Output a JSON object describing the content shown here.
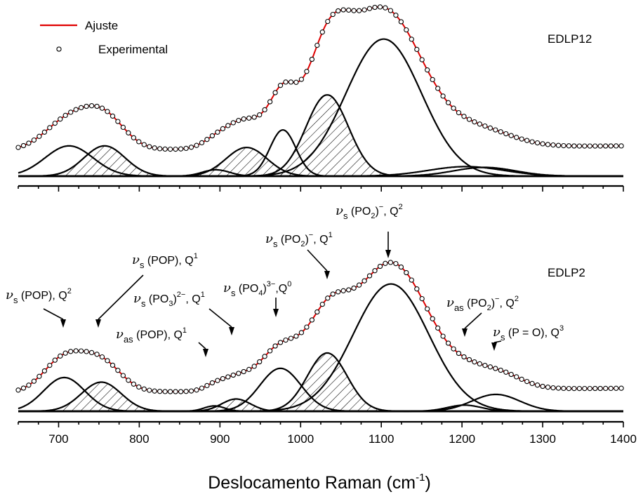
{
  "chart_data": {
    "type": "line",
    "xlabel_main": "Deslocamento Raman (cm",
    "xlabel_sup": "-1",
    "xlim": [
      650,
      1400
    ],
    "x_ticks": [
      700,
      800,
      900,
      1000,
      1100,
      1200,
      1300,
      1400
    ],
    "legend": {
      "position": "top-left",
      "fit_label": "Ajuste",
      "exp_label": "Experimental"
    },
    "colors": {
      "fit": "#e00000",
      "component": "#000000",
      "points": "#000000"
    },
    "panels": [
      {
        "name": "EDLP12",
        "label": "EDLP12",
        "ylim": [
          0,
          1.07
        ],
        "baseline_slope": 4e-05,
        "baseline_offset": 0.16,
        "peaks": [
          {
            "center": 713,
            "height": 0.19,
            "fwhm": 70,
            "hatched": false
          },
          {
            "center": 757,
            "height": 0.19,
            "fwhm": 60,
            "hatched": true
          },
          {
            "center": 895,
            "height": 0.04,
            "fwhm": 40,
            "hatched": false
          },
          {
            "center": 933,
            "height": 0.18,
            "fwhm": 60,
            "hatched": true
          },
          {
            "center": 978,
            "height": 0.29,
            "fwhm": 38,
            "hatched": false
          },
          {
            "center": 1033,
            "height": 0.51,
            "fwhm": 62,
            "hatched": true
          },
          {
            "center": 1103,
            "height": 0.86,
            "fwhm": 110,
            "hatched": false
          },
          {
            "center": 1205,
            "height": 0.06,
            "fwhm": 110,
            "hatched": false
          },
          {
            "center": 1228,
            "height": 0.055,
            "fwhm": 90,
            "hatched": false
          }
        ]
      },
      {
        "name": "EDLP2",
        "label": "EDLP2",
        "ylim": [
          0,
          1.08
        ],
        "baseline_slope": 4e-05,
        "baseline_offset": 0.12,
        "peaks": [
          {
            "center": 707,
            "height": 0.22,
            "fwhm": 60,
            "hatched": false
          },
          {
            "center": 753,
            "height": 0.19,
            "fwhm": 58,
            "hatched": true
          },
          {
            "center": 893,
            "height": 0.035,
            "fwhm": 30,
            "hatched": false
          },
          {
            "center": 920,
            "height": 0.08,
            "fwhm": 42,
            "hatched": true
          },
          {
            "center": 975,
            "height": 0.28,
            "fwhm": 60,
            "hatched": false
          },
          {
            "center": 1033,
            "height": 0.38,
            "fwhm": 58,
            "hatched": true
          },
          {
            "center": 1112,
            "height": 0.83,
            "fwhm": 110,
            "hatched": false
          },
          {
            "center": 1203,
            "height": 0.04,
            "fwhm": 50,
            "hatched": false
          },
          {
            "center": 1242,
            "height": 0.11,
            "fwhm": 70,
            "hatched": false
          }
        ],
        "annotations": [
          {
            "name": "vs-pop-q2",
            "sym": "ν",
            "sub": "s",
            "rest": " (POP), Q",
            "sup": "2",
            "x": 707,
            "y": 0.46
          },
          {
            "name": "vs-pop-q1",
            "sym": "ν",
            "sub": "s",
            "rest": " (POP), Q",
            "sup": "1",
            "x": 755,
            "y": 0.46
          },
          {
            "name": "vas-pop-q1",
            "sym": "ν",
            "sub": "as",
            "rest": " (POP), Q",
            "sup": "1",
            "x": 882,
            "y": 0.32
          },
          {
            "name": "vs-po3-q1",
            "sym": "ν",
            "sub": "s",
            "rest": " (PO",
            "sub2": "3",
            "rest2": ")",
            "sup2": "2−",
            "rest3": ", Q",
            "sup": "1",
            "x": 912,
            "y": 0.37
          },
          {
            "name": "vs-po4-q0",
            "sym": "ν",
            "sub": "s",
            "rest": " (PO",
            "sub2": "4",
            "rest2": ")",
            "sup2": "3−",
            "rest3": ",Q",
            "sup": "0",
            "x": 975,
            "y": 0.53
          },
          {
            "name": "vs-po2-q1",
            "sym": "ν",
            "sub": "s",
            "rest": " (PO",
            "sub2": "2",
            "rest2": ")",
            "sup2": "−",
            "rest3": ", Q",
            "sup": "1",
            "x": 1033,
            "y": 0.72
          },
          {
            "name": "vs-po2-q2",
            "sym": "ν",
            "sub": "s",
            "rest": " (PO",
            "sub2": "2",
            "rest2": ")",
            "sup2": "−",
            "rest3": ", Q",
            "sup": "2",
            "x": 1110,
            "y": 0.98
          },
          {
            "name": "vas-po2-q2",
            "sym": "ν",
            "sub": "as",
            "rest": " (PO",
            "sub2": "2",
            "rest2": ")",
            "sup2": "−",
            "rest3": ", Q",
            "sup": "2",
            "x": 1203,
            "y": 0.43
          },
          {
            "name": "vs-po-q3",
            "sym": "ν",
            "sub": "s",
            "rest": " (P = O), Q",
            "sup": "3",
            "x": 1240,
            "y": 0.33
          }
        ]
      }
    ]
  }
}
